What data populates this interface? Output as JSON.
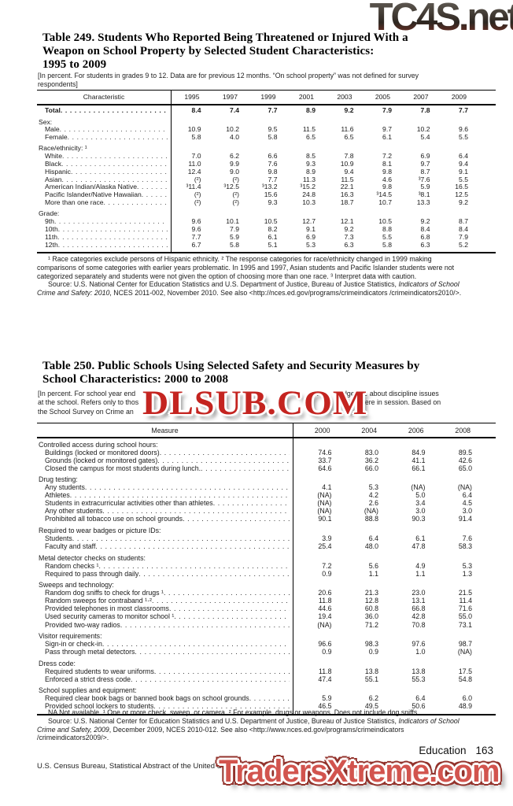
{
  "watermarks": {
    "top": "TC4S.net",
    "middle": "DLSUB.COM",
    "bottom": "TradersXtreme.com",
    "colors": {
      "top_gradient_from": "#6d6861",
      "top_gradient_to": "#8e3326",
      "middle_red": "#c42420",
      "bottom_red": "#d2544e"
    }
  },
  "page": {
    "section_label": "Education",
    "page_number": "163",
    "footer": "U.S. Census Bureau, Statistical Abstract of the United States: 2012"
  },
  "table249": {
    "title_lines": [
      "Table 249. Students Who Reported Being Threatened or Injured With a",
      "Weapon on School Property by Selected Student Characteristics:",
      "1995 to 2009"
    ],
    "note_lines": [
      "[In percent. For students in grades 9 to 12. Data are for previous 12 months. “On school property” was not defined for survey",
      "respondents]"
    ],
    "col_header": "Characteristic",
    "years": [
      "1995",
      "1997",
      "1999",
      "2001",
      "2003",
      "2005",
      "2007",
      "2009"
    ],
    "rows": [
      {
        "label": "Total",
        "type": "total",
        "values": [
          "8.4",
          "7.4",
          "7.7",
          "8.9",
          "9.2",
          "7.9",
          "7.8",
          "7.7"
        ]
      },
      {
        "label": "Sex:",
        "type": "section",
        "gap": true
      },
      {
        "label": "Male",
        "type": "data",
        "values": [
          "10.9",
          "10.2",
          "9.5",
          "11.5",
          "11.6",
          "9.7",
          "10.2",
          "9.6"
        ]
      },
      {
        "label": "Female",
        "type": "data",
        "values": [
          "5.8",
          "4.0",
          "5.8",
          "6.5",
          "6.5",
          "6.1",
          "5.4",
          "5.5"
        ]
      },
      {
        "label": "Race/ethnicity: ¹",
        "type": "section",
        "gap": true
      },
      {
        "label": "White",
        "type": "data",
        "values": [
          "7.0",
          "6.2",
          "6.6",
          "8.5",
          "7.8",
          "7.2",
          "6.9",
          "6.4"
        ]
      },
      {
        "label": "Black",
        "type": "data",
        "values": [
          "11.0",
          "9.9",
          "7.6",
          "9.3",
          "10.9",
          "8.1",
          "9.7",
          "9.4"
        ]
      },
      {
        "label": "Hispanic",
        "type": "data",
        "values": [
          "12.4",
          "9.0",
          "9.8",
          "8.9",
          "9.4",
          "9.8",
          "8.7",
          "9.1"
        ]
      },
      {
        "label": "Asian",
        "type": "data",
        "values": [
          "(²)",
          "(²)",
          "7.7",
          "11.3",
          "11.5",
          "4.6",
          "³7.6",
          "5.5"
        ]
      },
      {
        "label": "American Indian/Alaska Native",
        "type": "data",
        "values": [
          "³11.4",
          "³12.5",
          "³13.2",
          "³15.2",
          "22.1",
          "9.8",
          "5.9",
          "16.5"
        ]
      },
      {
        "label": "Pacific Islander/Native Hawaiian",
        "type": "data",
        "values": [
          "(²)",
          "(²)",
          "15.6",
          "24.8",
          "16.3",
          "³14.5",
          "³8.1",
          "12.5"
        ]
      },
      {
        "label": "More than one race",
        "type": "data",
        "values": [
          "(²)",
          "(²)",
          "9.3",
          "10.3",
          "18.7",
          "10.7",
          "13.3",
          "9.2"
        ]
      },
      {
        "label": "Grade:",
        "type": "section",
        "gap": true
      },
      {
        "label": "9th",
        "type": "data",
        "values": [
          "9.6",
          "10.1",
          "10.5",
          "12.7",
          "12.1",
          "10.5",
          "9.2",
          "8.7"
        ]
      },
      {
        "label": "10th",
        "type": "data",
        "values": [
          "9.6",
          "7.9",
          "8.2",
          "9.1",
          "9.2",
          "8.8",
          "8.4",
          "8.4"
        ]
      },
      {
        "label": "11th",
        "type": "data",
        "values": [
          "7.7",
          "5.9",
          "6.1",
          "6.9",
          "7.3",
          "5.5",
          "6.8",
          "7.9"
        ]
      },
      {
        "label": "12th",
        "type": "data",
        "values": [
          "6.7",
          "5.8",
          "5.1",
          "5.3",
          "6.3",
          "5.8",
          "6.3",
          "5.2"
        ]
      }
    ],
    "footnote": "¹ Race categories exclude persons of Hispanic ethnicity. ² The response categories for race/ethnicity changed in 1999 making comparisons of some categories with earlier years problematic. In 1995 and 1997, Asian students and Pacific Islander students were not categorized separately and students were not given the option of choosing more than one race. ³ Interpret data with caution.",
    "source_pre": "Source: U.S. National Center for Education Statistics and U.S. Department of Justice, Bureau of Justice Statistics, ",
    "source_italic": "Indicators of School Crime and Safety: 2010",
    "source_post": ", NCES 2011-002, November 2010. See also <http://nces.ed.gov/programs/crimeindicators /crimeindicators2010/>."
  },
  "table250": {
    "title_lines": [
      "Table 250. Public Schools Using Selected Safety and Security Measures by",
      "School Characteristics: 2000 to 2008"
    ],
    "note_fragments": {
      "line1_left": "[In percent. For school year end",
      "line1_mid1": "w",
      "line1_mid2": "pri",
      "line1_right": "dgeable about discipline issues",
      "line2_left": "at the school. Refers only to thos",
      "line2_right": "vents were in session. Based on",
      "line3_left": "the School Survey on Crime an"
    },
    "col_header": "Measure",
    "years": [
      "2000",
      "2004",
      "2006",
      "2008"
    ],
    "rows": [
      {
        "label": "Controlled access during school hours:",
        "type": "section"
      },
      {
        "label": "Buildings (locked or monitored doors)",
        "type": "data",
        "values": [
          "74.6",
          "83.0",
          "84.9",
          "89.5"
        ]
      },
      {
        "label": "Grounds (locked or monitored gates)",
        "type": "data",
        "values": [
          "33.7",
          "36.2",
          "41.1",
          "42.6"
        ]
      },
      {
        "label": "Closed the campus for most students during lunch.",
        "type": "data",
        "values": [
          "64.6",
          "66.0",
          "66.1",
          "65.0"
        ]
      },
      {
        "label": "Drug testing:",
        "type": "section",
        "gap": true
      },
      {
        "label": "Any students",
        "type": "data",
        "values": [
          "4.1",
          "5.3",
          "(NA)",
          "(NA)"
        ]
      },
      {
        "label": "Athletes",
        "type": "data",
        "values": [
          "(NA)",
          "4.2",
          "5.0",
          "6.4"
        ]
      },
      {
        "label": "Students in extracurricular activities other than athletes",
        "type": "data",
        "values": [
          "(NA)",
          "2.6",
          "3.4",
          "4.5"
        ]
      },
      {
        "label": "Any other students",
        "type": "data",
        "values": [
          "(NA)",
          "(NA)",
          "3.0",
          "3.0"
        ]
      },
      {
        "label": "Prohibited all tobacco use on school grounds",
        "type": "data",
        "values": [
          "90.1",
          "88.8",
          "90.3",
          "91.4"
        ]
      },
      {
        "label": "Required to wear badges or picture IDs:",
        "type": "section",
        "gap": true
      },
      {
        "label": "Students",
        "type": "data",
        "values": [
          "3.9",
          "6.4",
          "6.1",
          "7.6"
        ]
      },
      {
        "label": "Faculty and staff",
        "type": "data",
        "values": [
          "25.4",
          "48.0",
          "47.8",
          "58.3"
        ]
      },
      {
        "label": "Metal detector checks on students:",
        "type": "section",
        "gap": true
      },
      {
        "label": "Random checks ¹",
        "type": "data",
        "values": [
          "7.2",
          "5.6",
          "4.9",
          "5.3"
        ]
      },
      {
        "label": "Required to pass through daily",
        "type": "data",
        "values": [
          "0.9",
          "1.1",
          "1.1",
          "1.3"
        ]
      },
      {
        "label": "Sweeps and technology:",
        "type": "section",
        "gap": true
      },
      {
        "label": "Random dog sniffs to check for drugs ¹",
        "type": "data",
        "values": [
          "20.6",
          "21.3",
          "23.0",
          "21.5"
        ]
      },
      {
        "label": "Random sweeps for contraband ¹·²",
        "type": "data",
        "values": [
          "11.8",
          "12.8",
          "13.1",
          "11.4"
        ]
      },
      {
        "label": "Provided telephones in most classrooms",
        "type": "data",
        "values": [
          "44.6",
          "60.8",
          "66.8",
          "71.6"
        ]
      },
      {
        "label": "Used security cameras to monitor school ¹",
        "type": "data",
        "values": [
          "19.4",
          "36.0",
          "42.8",
          "55.0"
        ]
      },
      {
        "label": "Provided two-way radios",
        "type": "data",
        "values": [
          "(NA)",
          "71.2",
          "70.8",
          "73.1"
        ]
      },
      {
        "label": "Visitor requirements:",
        "type": "section",
        "gap": true
      },
      {
        "label": "Sign-in or check-in",
        "type": "data",
        "values": [
          "96.6",
          "98.3",
          "97.6",
          "98.7"
        ]
      },
      {
        "label": "Pass through metal detectors",
        "type": "data",
        "values": [
          "0.9",
          "0.9",
          "1.0",
          "(NA)"
        ]
      },
      {
        "label": "Dress code:",
        "type": "section",
        "gap": true
      },
      {
        "label": "Required students to wear uniforms",
        "type": "data",
        "values": [
          "11.8",
          "13.8",
          "13.8",
          "17.5"
        ]
      },
      {
        "label": "Enforced a strict dress code",
        "type": "data",
        "values": [
          "47.4",
          "55.1",
          "55.3",
          "54.8"
        ]
      },
      {
        "label": "School supplies and equipment:",
        "type": "section",
        "gap": true
      },
      {
        "label": "Required clear book bags or banned book bags on school grounds",
        "type": "data",
        "values": [
          "5.9",
          "6.2",
          "6.4",
          "6.0"
        ]
      },
      {
        "label": "Provided school lockers to students",
        "type": "data",
        "values": [
          "46.5",
          "49.5",
          "50.6",
          "48.9"
        ]
      }
    ],
    "footnote": "NA Not available. ¹ One or more check, sweep, or camera. ² For example, drugs or weapons. Does not include dog sniffs.",
    "source_pre": "Source: U.S. National Center for Education Statistics and U.S. Department of Justice, Bureau of Justice Statistics, ",
    "source_italic": "Indicators of School Crime and Safety, 2009",
    "source_post": ", December 2009, NCES 2010-012. See also <http://www.nces.ed.gov/programs/crimeindicators /crimeindicators2009/>."
  }
}
